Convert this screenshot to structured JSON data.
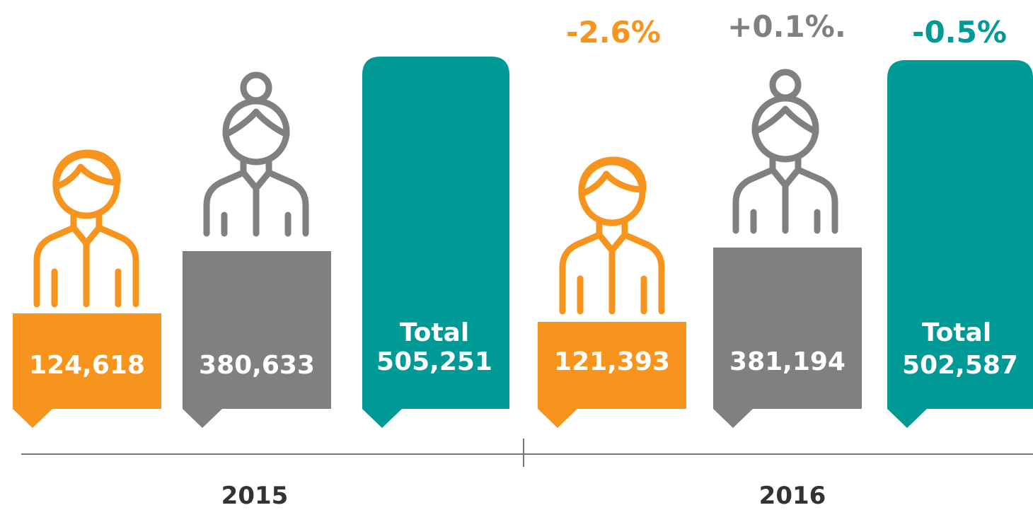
{
  "groups": [
    {
      "year": "2015",
      "male": "124,618",
      "female": "380,633",
      "total_label": "Total",
      "total": "505,251"
    },
    {
      "year": "2016",
      "male": "121,393",
      "female": "381,194",
      "total_label": "Total",
      "total": "502,587",
      "male_change": "-2.6%",
      "female_change": "+0.1%.",
      "total_change": "-0.5%"
    }
  ]
}
